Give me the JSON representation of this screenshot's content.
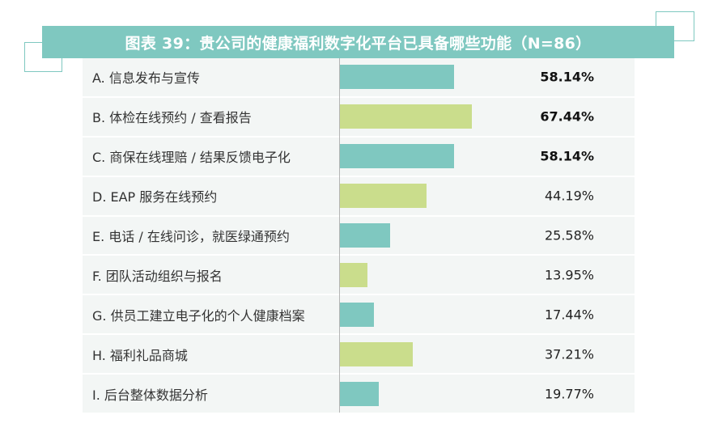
{
  "colors": {
    "banner": "#7fc8c0",
    "frame": "#7fc8c0",
    "teal": "#7fc8c0",
    "green": "#cadd8c"
  },
  "chart_data": {
    "type": "bar",
    "orientation": "horizontal",
    "title": "图表 39：贵公司的健康福利数字化平台已具备哪些功能（N=86）",
    "categories": [
      "A. 信息发布与宣传",
      "B. 体检在线预约 / 查看报告",
      "C. 商保在线理赔 / 结果反馈电子化",
      "D. EAP 服务在线预约",
      "E. 电话 / 在线问诊，就医绿通预约",
      "F. 团队活动组织与报名",
      "G. 供员工建立电子化的个人健康档案",
      "H. 福利礼品商城",
      "I. 后台整体数据分析"
    ],
    "values": [
      58.14,
      67.44,
      58.14,
      44.19,
      25.58,
      13.95,
      17.44,
      37.21,
      19.77
    ],
    "value_labels": [
      "58.14%",
      "67.44%",
      "58.14%",
      "44.19%",
      "25.58%",
      "13.95%",
      "17.44%",
      "37.21%",
      "19.77%"
    ],
    "bar_colors": [
      "#7fc8c0",
      "#cadd8c",
      "#7fc8c0",
      "#cadd8c",
      "#7fc8c0",
      "#cadd8c",
      "#7fc8c0",
      "#cadd8c",
      "#7fc8c0"
    ],
    "bold_value_labels": [
      true,
      true,
      true,
      false,
      false,
      false,
      false,
      false,
      false
    ],
    "xlim": [
      0,
      100
    ],
    "grid": false
  }
}
